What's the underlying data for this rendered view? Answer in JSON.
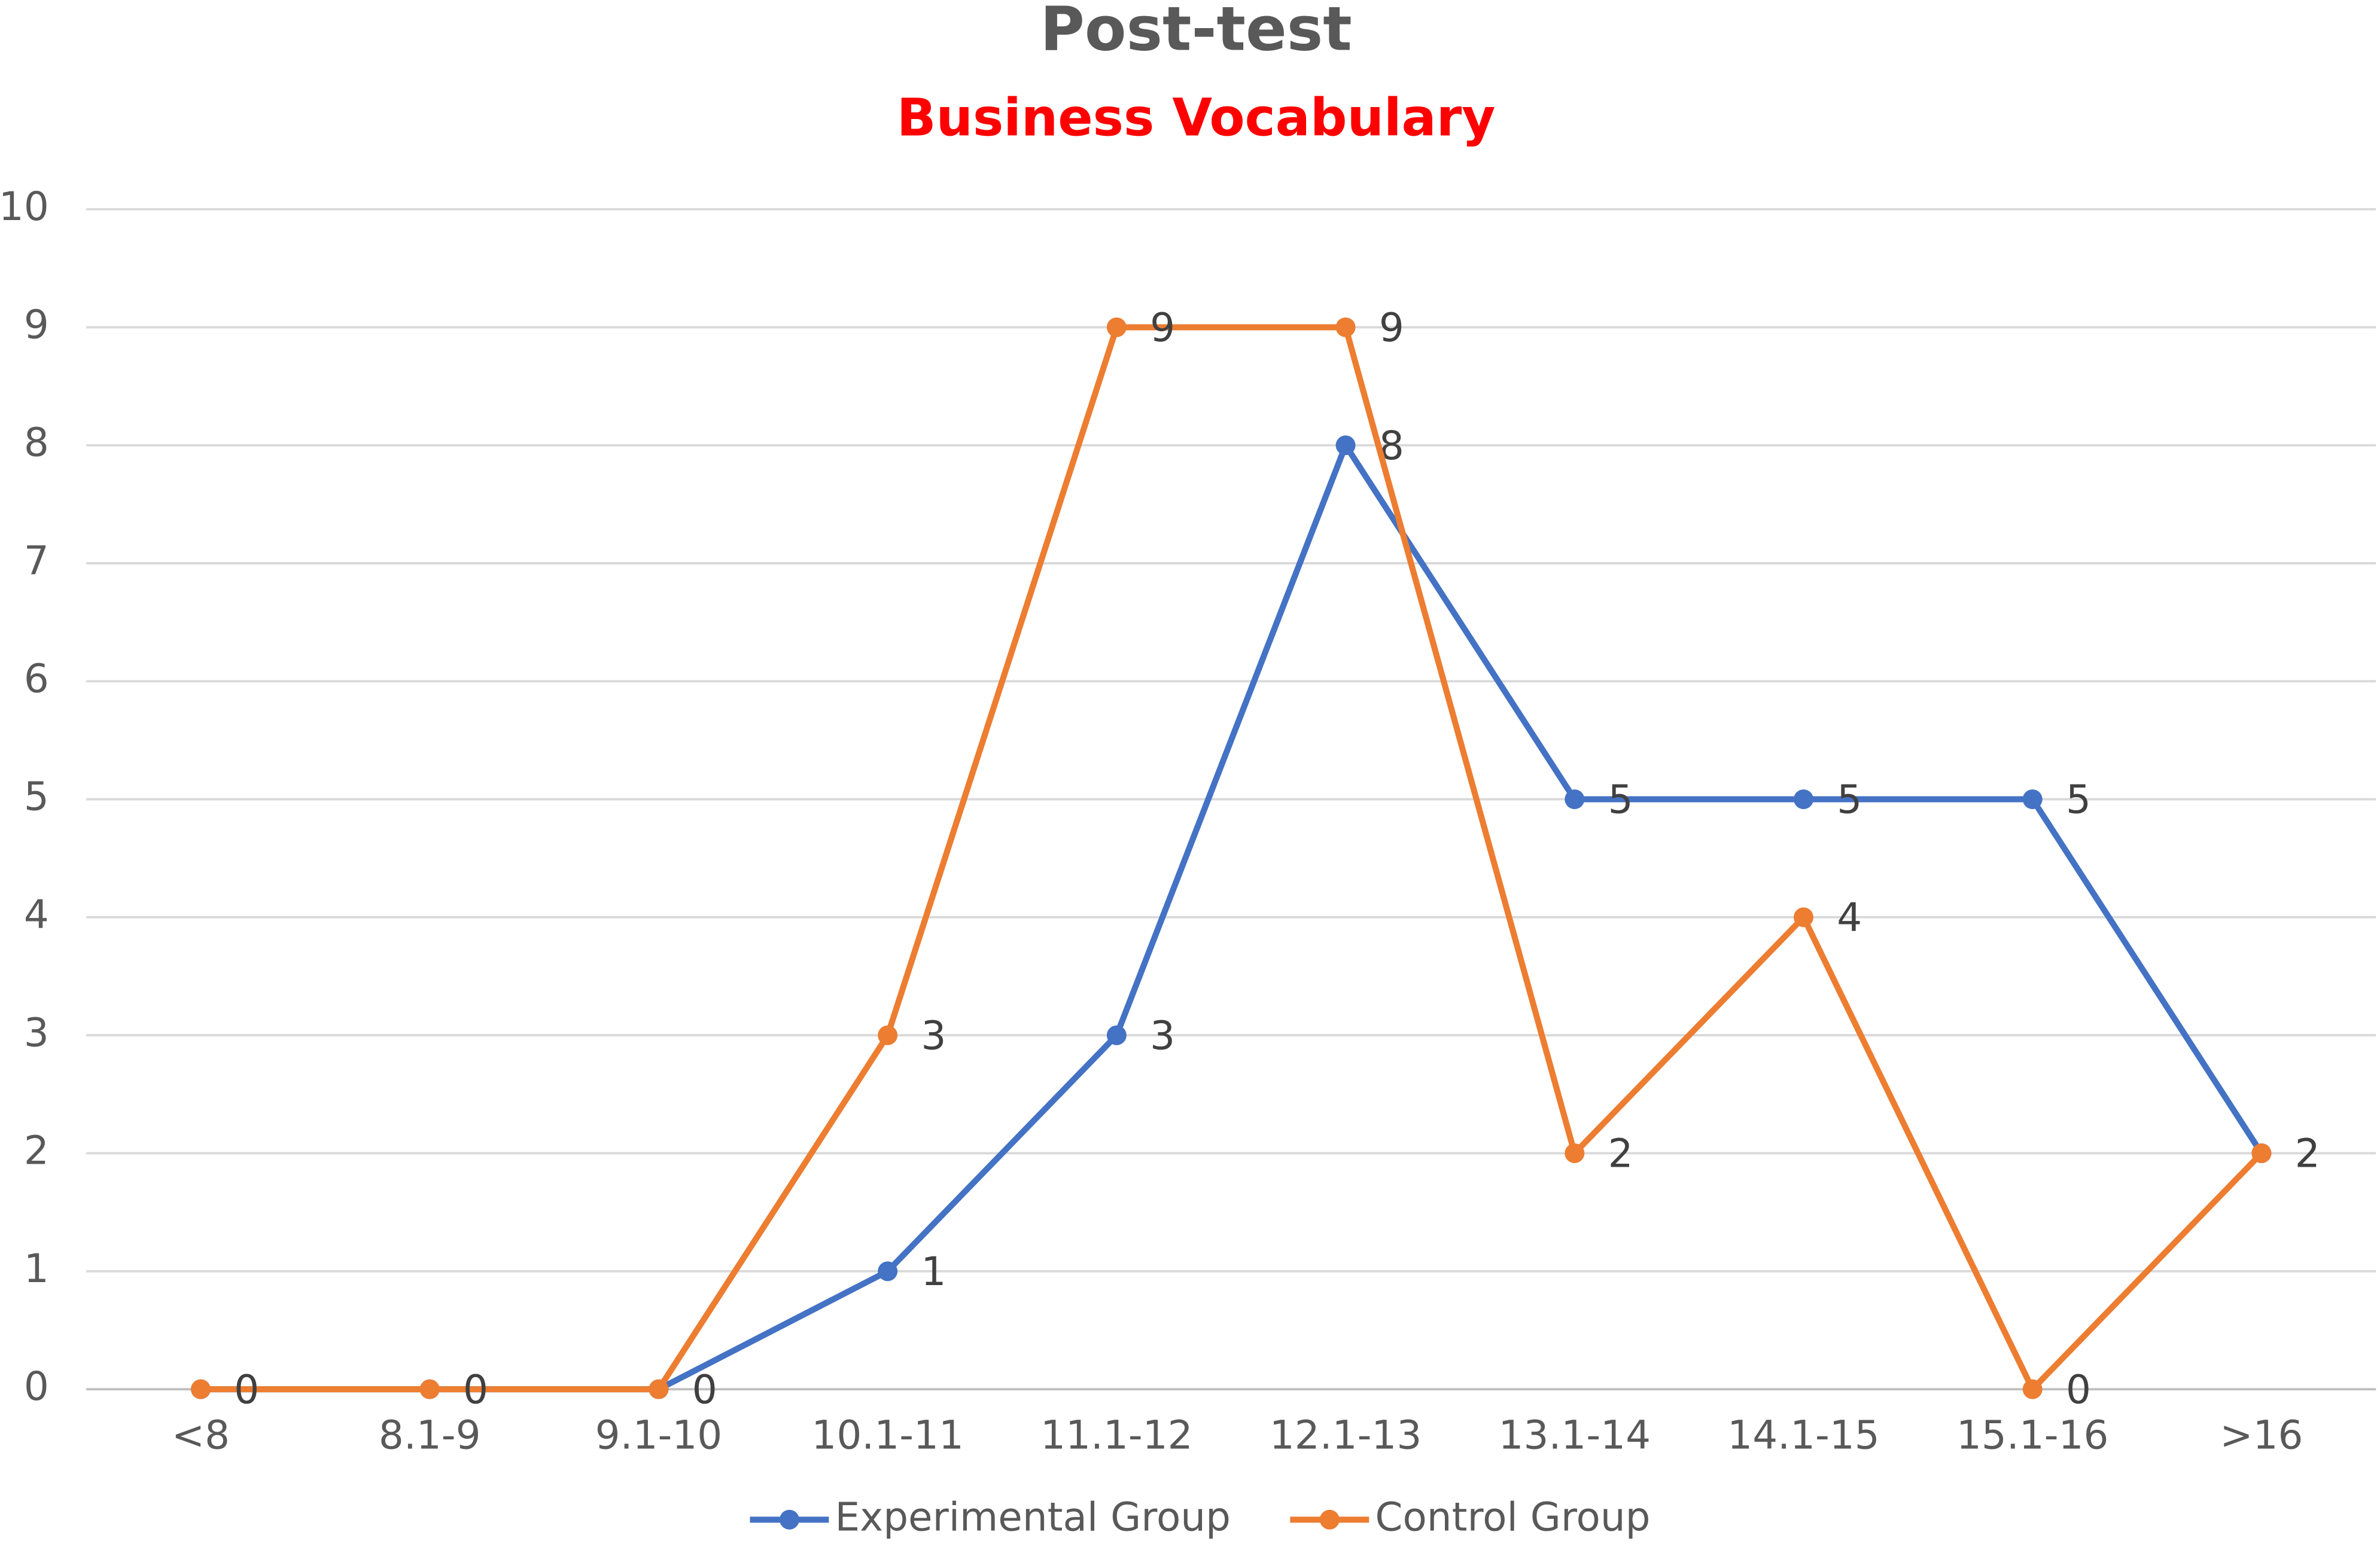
{
  "chart_data": {
    "type": "line",
    "title": "Post-test",
    "subtitle": "Business Vocabulary",
    "categories": [
      "<8",
      "8.1-9",
      "9.1-10",
      "10.1-11",
      "11.1-12",
      "12.1-13",
      "13.1-14",
      "14.1-15",
      "15.1-16",
      ">16"
    ],
    "series": [
      {
        "name": "Experimental Group",
        "color": "#4472c4",
        "values": [
          0,
          0,
          0,
          1,
          3,
          8,
          5,
          5,
          5,
          2
        ]
      },
      {
        "name": "Control Group",
        "color": "#ed7d31",
        "values": [
          0,
          0,
          0,
          3,
          9,
          9,
          2,
          4,
          0,
          2
        ]
      }
    ],
    "ylim": [
      0,
      10
    ],
    "yticks": [
      0,
      1,
      2,
      3,
      4,
      5,
      6,
      7,
      8,
      9,
      10
    ],
    "grid": true,
    "legend": "bottom",
    "data_labels": true
  }
}
